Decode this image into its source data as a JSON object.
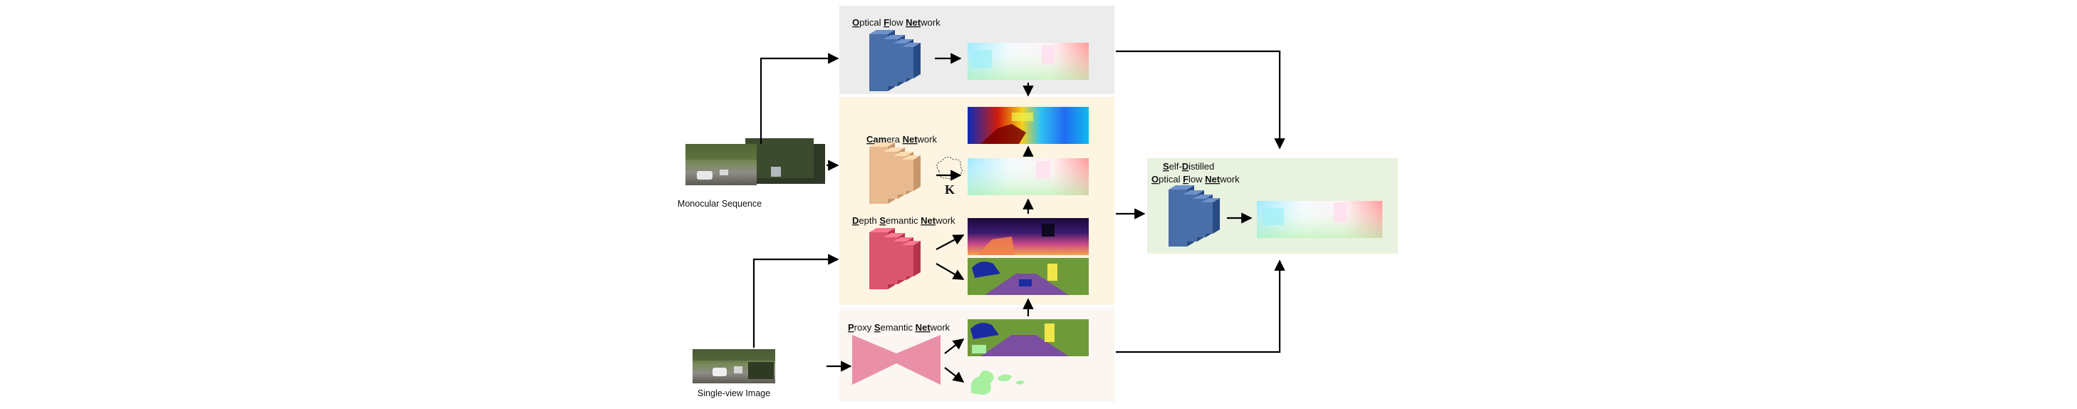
{
  "panels": {
    "optical_flow": {
      "title_parts": [
        [
          "O",
          true
        ],
        [
          "ptical ",
          false
        ],
        [
          "F",
          true
        ],
        [
          "low ",
          false
        ],
        [
          "Net",
          true
        ],
        [
          "work",
          false
        ]
      ],
      "bg": "#ececec"
    },
    "main": {
      "bg": "#fdf5e2",
      "camera_title_parts": [
        [
          "Cam",
          true
        ],
        [
          "era ",
          false
        ],
        [
          "Net",
          true
        ],
        [
          "work",
          false
        ]
      ],
      "depth_title_parts": [
        [
          "D",
          true
        ],
        [
          "epth ",
          false
        ],
        [
          "S",
          true
        ],
        [
          "emantic ",
          false
        ],
        [
          "Net",
          true
        ],
        [
          "work",
          false
        ]
      ],
      "k_label": "K"
    },
    "proxy": {
      "bg": "#fcf6f2",
      "title_parts": [
        [
          "P",
          true
        ],
        [
          "roxy ",
          false
        ],
        [
          "S",
          true
        ],
        [
          "emantic ",
          false
        ],
        [
          "Net",
          true
        ],
        [
          "work",
          false
        ]
      ]
    },
    "self_distilled": {
      "bg": "#e8f2df",
      "line1_parts": [
        [
          "S",
          true
        ],
        [
          "elf-",
          false
        ],
        [
          "D",
          true
        ],
        [
          "istilled",
          false
        ]
      ],
      "line2_parts": [
        [
          "O",
          true
        ],
        [
          "ptical ",
          false
        ],
        [
          "F",
          true
        ],
        [
          "low ",
          false
        ],
        [
          "Net",
          true
        ],
        [
          "work",
          false
        ]
      ]
    }
  },
  "inputs": {
    "monocular_label": "Monocular Sequence",
    "single_view_label": "Single-view Image"
  },
  "colors": {
    "flow_net": "#4a6ea8",
    "camera_net": "#e9b98f",
    "depth_net": "#d9566e",
    "proxy_net": "#ea8fa8",
    "arrow": "#000000"
  }
}
